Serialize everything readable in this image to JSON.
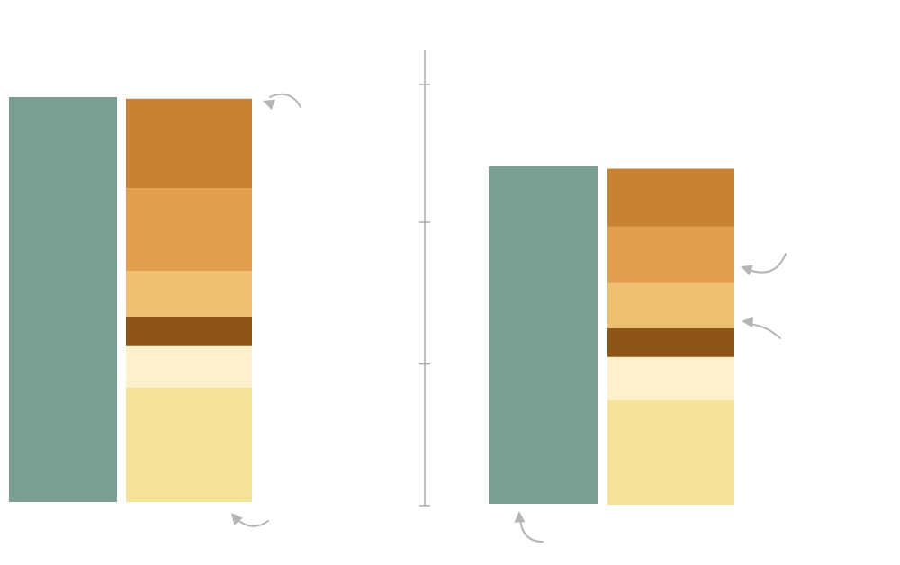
{
  "chart_data": {
    "type": "bar",
    "stacked": true,
    "title": "",
    "xlabel": "",
    "ylabel": "",
    "ylim": [
      0,
      100
    ],
    "grid": false,
    "legend": "none",
    "groups": [
      {
        "total": {
          "value": 100,
          "color": "#7a9e92"
        },
        "segments": [
          {
            "value": 28.3,
            "color": "#f7e29c"
          },
          {
            "value": 10.2,
            "color": "#fcf1cc"
          },
          {
            "value": 7.3,
            "color": "#8e5519"
          },
          {
            "value": 11.3,
            "color": "#f0c072"
          },
          {
            "value": 20.4,
            "color": "#e2a04e"
          },
          {
            "value": 22.1,
            "color": "#c98232"
          }
        ]
      },
      {
        "total": {
          "value": 83.4,
          "color": "#7a9e92"
        },
        "segments": [
          {
            "value": 25.8,
            "color": "#f7e29c"
          },
          {
            "value": 10.7,
            "color": "#fcf1cc"
          },
          {
            "value": 7.1,
            "color": "#8e5519"
          },
          {
            "value": 11.1,
            "color": "#f0c072"
          },
          {
            "value": 14.0,
            "color": "#e2a04e"
          },
          {
            "value": 14.3,
            "color": "#c98232"
          }
        ]
      }
    ],
    "axis_ticks": [
      0,
      35,
      70,
      104
    ]
  },
  "colors": {
    "axis": "#aaaaaa",
    "arrow": "#b5b5b5"
  }
}
